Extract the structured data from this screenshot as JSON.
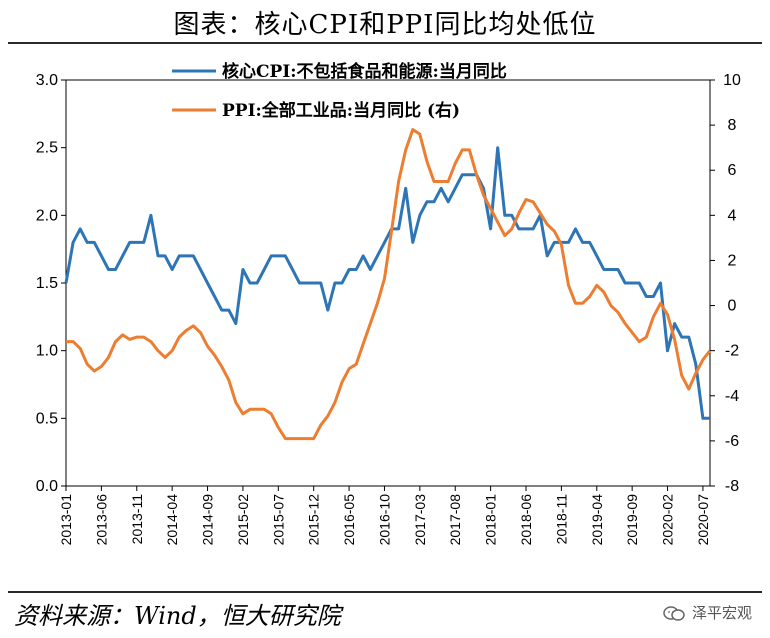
{
  "title": "图表：核心CPI和PPI同比均处低位",
  "source": "资料来源：Wind，恒大研究院",
  "watermark": "泽平宏观",
  "chart_data": {
    "type": "line",
    "left_axis": {
      "ylim": [
        0,
        3.0
      ],
      "ticks": [
        "0.0",
        "0.5",
        "1.0",
        "1.5",
        "2.0",
        "2.5",
        "3.0"
      ]
    },
    "right_axis": {
      "ylim": [
        -8,
        10
      ],
      "ticks": [
        "-8",
        "-6",
        "-4",
        "-2",
        "0",
        "2",
        "4",
        "6",
        "8",
        "10"
      ]
    },
    "x_ticks": [
      "2013-01",
      "2013-06",
      "2013-11",
      "2014-04",
      "2014-09",
      "2015-02",
      "2015-07",
      "2015-12",
      "2016-05",
      "2016-10",
      "2017-03",
      "2017-08",
      "2018-01",
      "2018-06",
      "2018-11",
      "2019-04",
      "2019-09",
      "2020-02",
      "2020-07"
    ],
    "months": [
      "2013-01",
      "2013-02",
      "2013-03",
      "2013-04",
      "2013-05",
      "2013-06",
      "2013-07",
      "2013-08",
      "2013-09",
      "2013-10",
      "2013-11",
      "2013-12",
      "2014-01",
      "2014-02",
      "2014-03",
      "2014-04",
      "2014-05",
      "2014-06",
      "2014-07",
      "2014-08",
      "2014-09",
      "2014-10",
      "2014-11",
      "2014-12",
      "2015-01",
      "2015-02",
      "2015-03",
      "2015-04",
      "2015-05",
      "2015-06",
      "2015-07",
      "2015-08",
      "2015-09",
      "2015-10",
      "2015-11",
      "2015-12",
      "2016-01",
      "2016-02",
      "2016-03",
      "2016-04",
      "2016-05",
      "2016-06",
      "2016-07",
      "2016-08",
      "2016-09",
      "2016-10",
      "2016-11",
      "2016-12",
      "2017-01",
      "2017-02",
      "2017-03",
      "2017-04",
      "2017-05",
      "2017-06",
      "2017-07",
      "2017-08",
      "2017-09",
      "2017-10",
      "2017-11",
      "2017-12",
      "2018-01",
      "2018-02",
      "2018-03",
      "2018-04",
      "2018-05",
      "2018-06",
      "2018-07",
      "2018-08",
      "2018-09",
      "2018-10",
      "2018-11",
      "2018-12",
      "2019-01",
      "2019-02",
      "2019-03",
      "2019-04",
      "2019-05",
      "2019-06",
      "2019-07",
      "2019-08",
      "2019-09",
      "2019-10",
      "2019-11",
      "2019-12",
      "2020-01",
      "2020-02",
      "2020-03",
      "2020-04",
      "2020-05",
      "2020-06",
      "2020-07",
      "2020-08"
    ],
    "series": [
      {
        "name": "核心CPI:不包括食品和能源:当月同比",
        "axis": "left",
        "color": "#2E75B6",
        "values": [
          1.5,
          1.8,
          1.9,
          1.8,
          1.8,
          1.7,
          1.6,
          1.6,
          1.7,
          1.8,
          1.8,
          1.8,
          2.0,
          1.7,
          1.7,
          1.6,
          1.7,
          1.7,
          1.7,
          1.6,
          1.5,
          1.4,
          1.3,
          1.3,
          1.2,
          1.6,
          1.5,
          1.5,
          1.6,
          1.7,
          1.7,
          1.7,
          1.6,
          1.5,
          1.5,
          1.5,
          1.5,
          1.3,
          1.5,
          1.5,
          1.6,
          1.6,
          1.7,
          1.6,
          1.7,
          1.8,
          1.9,
          1.9,
          2.2,
          1.8,
          2.0,
          2.1,
          2.1,
          2.2,
          2.1,
          2.2,
          2.3,
          2.3,
          2.3,
          2.2,
          1.9,
          2.5,
          2.0,
          2.0,
          1.9,
          1.9,
          1.9,
          2.0,
          1.7,
          1.8,
          1.8,
          1.8,
          1.9,
          1.8,
          1.8,
          1.7,
          1.6,
          1.6,
          1.6,
          1.5,
          1.5,
          1.5,
          1.4,
          1.4,
          1.5,
          1.0,
          1.2,
          1.1,
          1.1,
          0.9,
          0.5,
          0.5
        ]
      },
      {
        "name": "PPI:全部工业品:当月同比 (右)",
        "axis": "right",
        "color": "#ED7D31",
        "values": [
          -1.6,
          -1.6,
          -1.9,
          -2.6,
          -2.9,
          -2.7,
          -2.3,
          -1.6,
          -1.3,
          -1.5,
          -1.4,
          -1.4,
          -1.6,
          -2.0,
          -2.3,
          -2.0,
          -1.4,
          -1.1,
          -0.9,
          -1.2,
          -1.8,
          -2.2,
          -2.7,
          -3.3,
          -4.3,
          -4.8,
          -4.6,
          -4.6,
          -4.6,
          -4.8,
          -5.4,
          -5.9,
          -5.9,
          -5.9,
          -5.9,
          -5.9,
          -5.3,
          -4.9,
          -4.3,
          -3.4,
          -2.8,
          -2.6,
          -1.7,
          -0.8,
          0.1,
          1.2,
          3.3,
          5.5,
          6.9,
          7.8,
          7.6,
          6.4,
          5.5,
          5.5,
          5.5,
          6.3,
          6.9,
          6.9,
          5.8,
          4.9,
          4.3,
          3.7,
          3.1,
          3.4,
          4.1,
          4.7,
          4.6,
          4.1,
          3.6,
          3.3,
          2.7,
          0.9,
          0.1,
          0.1,
          0.4,
          0.9,
          0.6,
          0.0,
          -0.3,
          -0.8,
          -1.2,
          -1.6,
          -1.4,
          -0.5,
          0.1,
          -0.4,
          -1.5,
          -3.1,
          -3.7,
          -3.0,
          -2.4,
          -2.0
        ]
      }
    ]
  }
}
